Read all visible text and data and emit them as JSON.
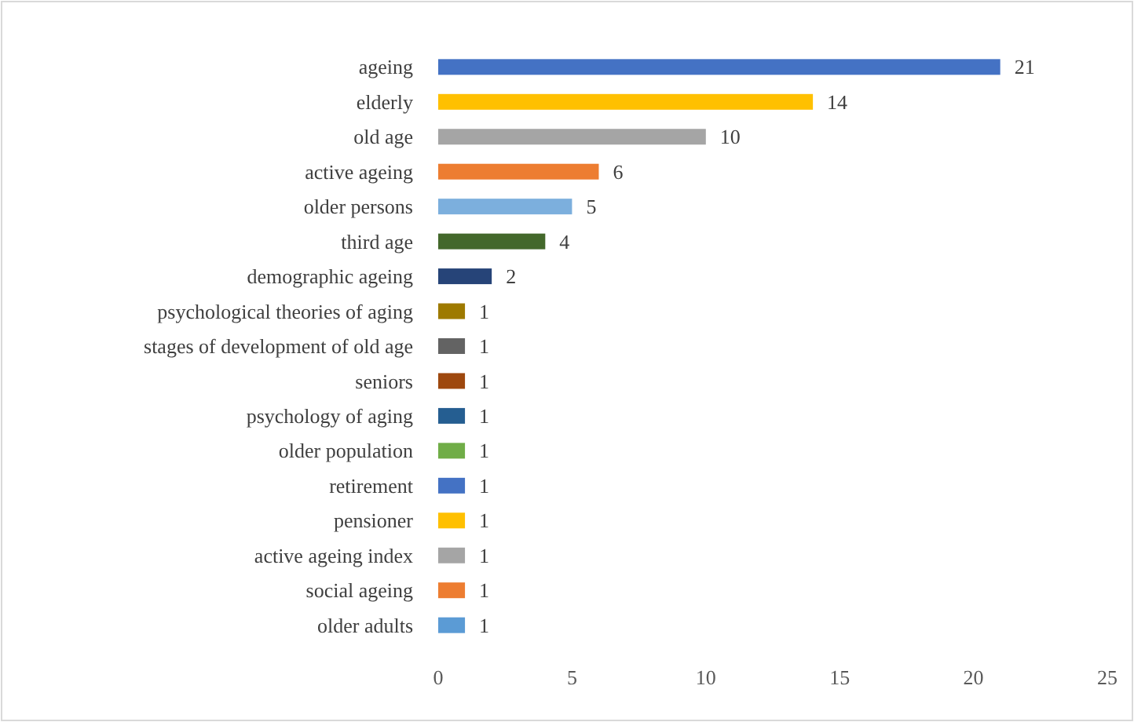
{
  "chart_data": {
    "type": "bar",
    "orientation": "horizontal",
    "categories": [
      "ageing",
      "elderly",
      "old age",
      "active ageing",
      "older persons",
      "third age",
      "demographic ageing",
      "psychological theories of aging",
      "stages of development of old age",
      "seniors",
      "psychology of aging",
      "older population",
      "retirement",
      "pensioner",
      "active ageing index",
      "social ageing",
      "older adults"
    ],
    "values": [
      21,
      14,
      10,
      6,
      5,
      4,
      2,
      1,
      1,
      1,
      1,
      1,
      1,
      1,
      1,
      1,
      1
    ],
    "colors": [
      "#4472c4",
      "#ffc000",
      "#a5a5a5",
      "#ed7d31",
      "#7cafdd",
      "#43682b",
      "#264478",
      "#9e7a00",
      "#636363",
      "#9e480e",
      "#255e91",
      "#70ad47",
      "#4472c4",
      "#ffc000",
      "#a5a5a5",
      "#ed7d31",
      "#5b9bd5"
    ],
    "xlim": [
      0,
      25
    ],
    "xticks": [
      0,
      5,
      10,
      15,
      20,
      25
    ],
    "data_labels": true
  }
}
